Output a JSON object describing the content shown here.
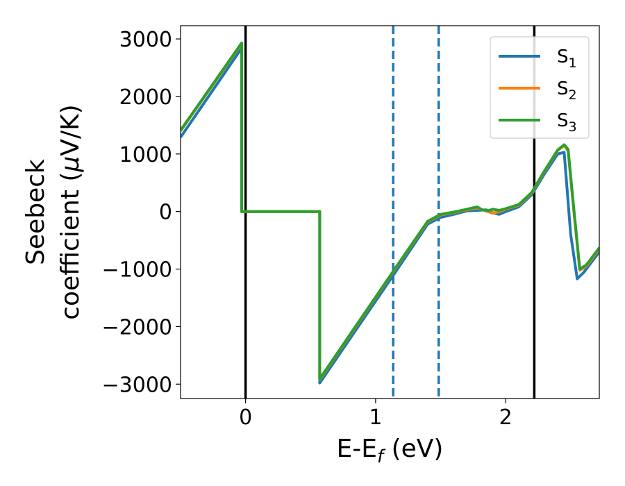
{
  "chart_data": {
    "type": "line",
    "title": "",
    "xlabel": {
      "main": "E-E",
      "sub": "f",
      "tail": " (eV)"
    },
    "ylabel": {
      "line1": "Seebeck",
      "line2_prefix": "coefficient  (",
      "mu": "μ",
      "line2_suffix": "V/K)"
    },
    "xlim": [
      -0.5,
      2.72
    ],
    "ylim": [
      -3250,
      3230
    ],
    "xticks": [
      0,
      1,
      2
    ],
    "xtick_labels": [
      "0",
      "1",
      "2"
    ],
    "yticks": [
      -3000,
      -2000,
      -1000,
      0,
      1000,
      2000,
      3000
    ],
    "ytick_labels": [
      "−3000",
      "−2000",
      "−1000",
      "0",
      "1000",
      "2000",
      "3000"
    ],
    "grid": false,
    "legend_position": "top-right",
    "vlines": [
      {
        "x": 0.0,
        "style": "solid",
        "color": "#000000"
      },
      {
        "x": 1.135,
        "style": "dashed",
        "color": "#1f77b4"
      },
      {
        "x": 1.485,
        "style": "dashed",
        "color": "#1f77b4"
      },
      {
        "x": 2.22,
        "style": "solid",
        "color": "#000000"
      }
    ],
    "series": [
      {
        "name": "S",
        "sub": "1",
        "color": "#1f77b4",
        "x": [
          -0.5,
          -0.03,
          -0.03,
          0.57,
          0.57,
          1.15,
          1.4,
          1.5,
          1.6,
          1.7,
          1.78,
          1.85,
          1.9,
          1.95,
          2.0,
          2.1,
          2.2,
          2.3,
          2.35,
          2.4,
          2.45,
          2.5,
          2.55,
          2.6,
          2.72
        ],
        "y": [
          1290,
          2840,
          0,
          0,
          -2980,
          -1060,
          -220,
          -100,
          -50,
          10,
          20,
          30,
          -20,
          -50,
          0,
          80,
          290,
          660,
          830,
          1000,
          1030,
          -400,
          -1170,
          -1060,
          -700
        ]
      },
      {
        "name": "S",
        "sub": "2",
        "color": "#ff7f0e",
        "x": [
          -0.5,
          -0.03,
          -0.03,
          0.57,
          0.57,
          1.15,
          1.4,
          1.5,
          1.6,
          1.7,
          1.78,
          1.85,
          1.9,
          1.95,
          2.0,
          2.1,
          2.2,
          2.3,
          2.35,
          2.4,
          2.45,
          2.48,
          2.52,
          2.57,
          2.62,
          2.72
        ],
        "y": [
          1400,
          2920,
          0,
          0,
          -2920,
          -1000,
          -180,
          -60,
          -20,
          30,
          60,
          10,
          -30,
          0,
          40,
          110,
          320,
          700,
          880,
          1060,
          1150,
          1050,
          100,
          -1020,
          -950,
          -650
        ]
      },
      {
        "name": "S",
        "sub": "3",
        "color": "#2ca02c",
        "x": [
          -0.5,
          -0.03,
          -0.03,
          0.57,
          0.57,
          1.15,
          1.4,
          1.5,
          1.6,
          1.7,
          1.78,
          1.82,
          1.86,
          1.9,
          1.95,
          2.0,
          2.1,
          2.2,
          2.3,
          2.35,
          2.4,
          2.45,
          2.48,
          2.52,
          2.57,
          2.62,
          2.72
        ],
        "y": [
          1410,
          2930,
          0,
          0,
          -2910,
          -990,
          -170,
          -50,
          -10,
          40,
          80,
          30,
          10,
          40,
          20,
          50,
          120,
          330,
          710,
          890,
          1070,
          1160,
          1080,
          150,
          -1000,
          -930,
          -630
        ]
      }
    ]
  }
}
